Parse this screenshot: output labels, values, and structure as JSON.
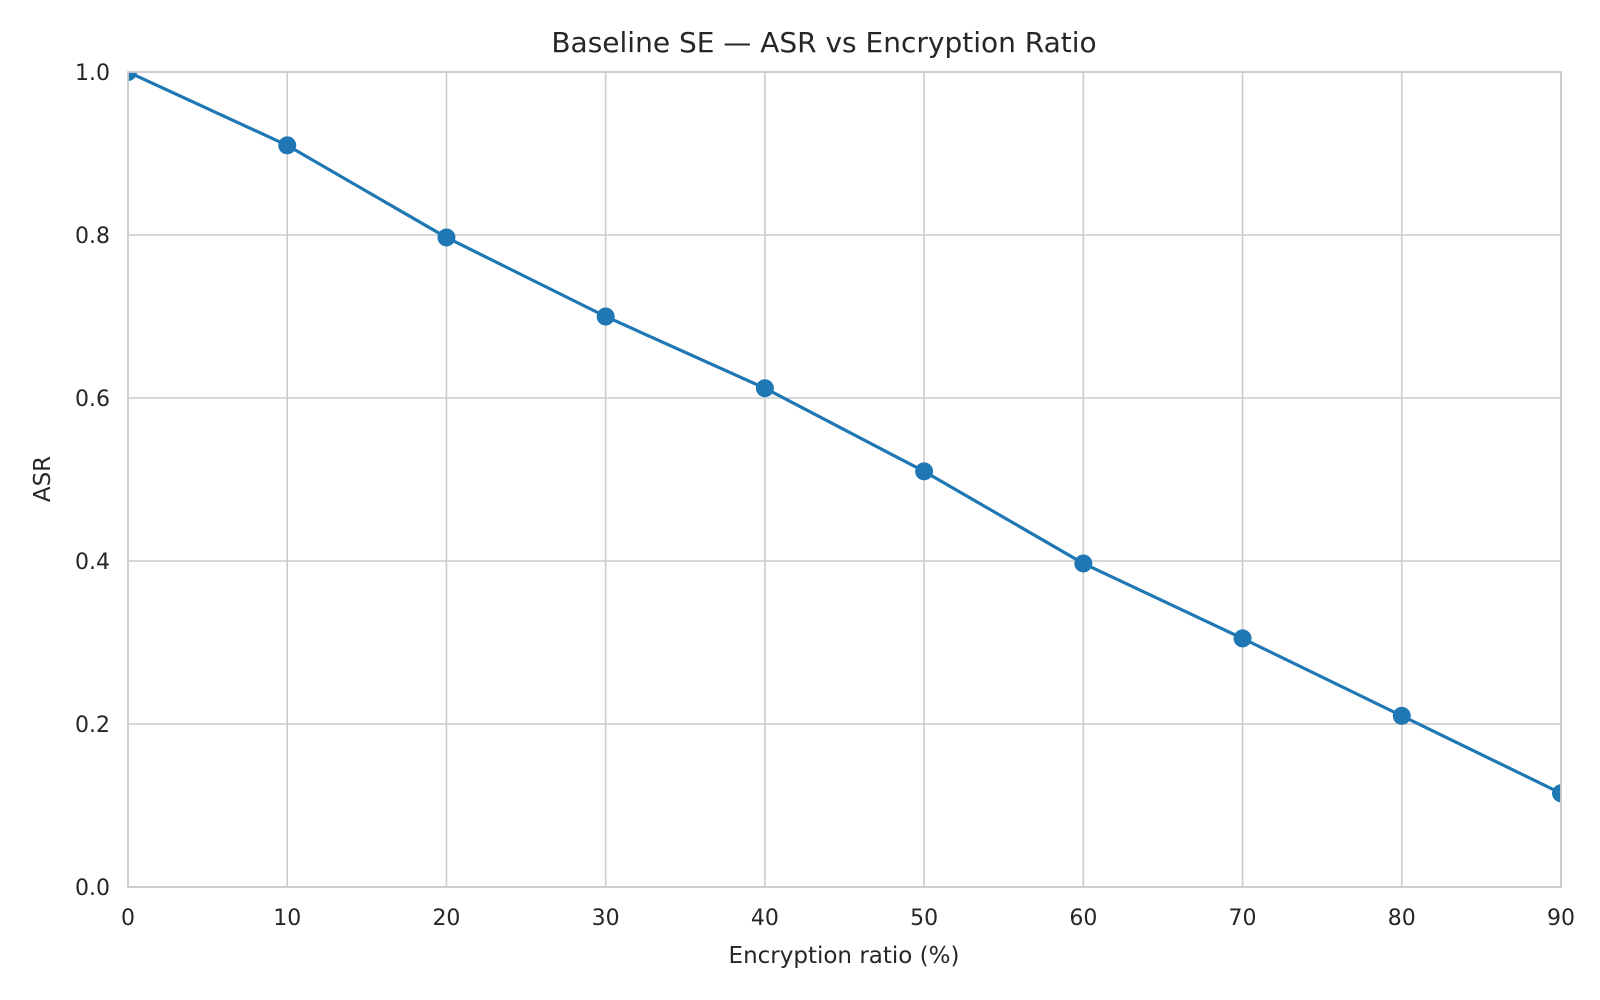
{
  "chart_data": {
    "type": "line",
    "title": "Baseline SE — ASR vs Encryption Ratio",
    "xlabel": "Encryption ratio (%)",
    "ylabel": "ASR",
    "xlim": [
      0,
      90
    ],
    "ylim": [
      0.0,
      1.0
    ],
    "x_ticks": [
      "0",
      "10",
      "20",
      "30",
      "40",
      "50",
      "60",
      "70",
      "80",
      "90"
    ],
    "y_ticks": [
      "0.0",
      "0.2",
      "0.4",
      "0.6",
      "0.8",
      "1.0"
    ],
    "grid": true,
    "x": [
      0,
      10,
      20,
      30,
      40,
      50,
      60,
      70,
      80,
      90
    ],
    "series": [
      {
        "values": [
          1.0,
          0.91,
          0.797,
          0.7,
          0.612,
          0.51,
          0.397,
          0.305,
          0.21,
          0.115
        ],
        "color": "#1f77b4",
        "marker": "circle"
      }
    ]
  }
}
